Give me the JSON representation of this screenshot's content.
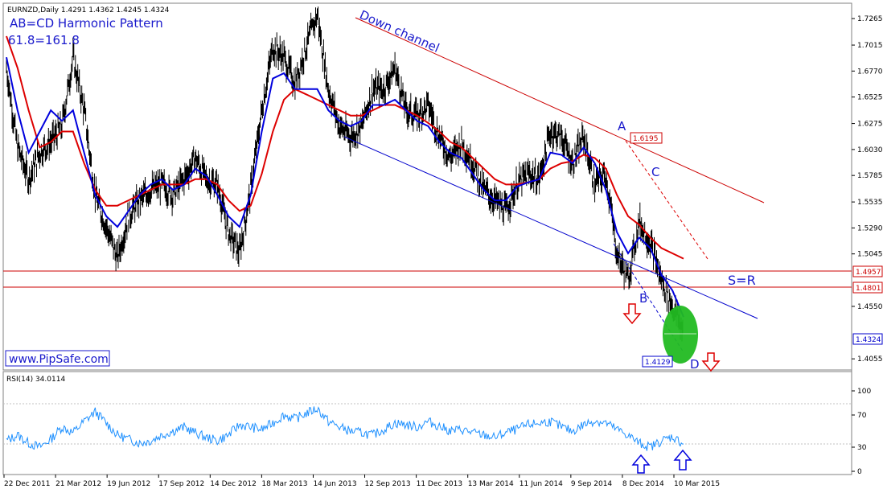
{
  "header": {
    "symbol_ohlc": "EURNZD,Daily  1.4291 1.4362 1.4245 1.4324",
    "pattern_title": "AB=CD Harmonic Pattern",
    "ratio_text": "61.8=161.8"
  },
  "annotations": {
    "channel_label": "Down channel",
    "sr_label": "S=R",
    "watermark": "www.PipSafe.com",
    "point_a": "A",
    "point_b": "B",
    "point_c": "C",
    "point_d": "D",
    "box_a_value": "1.6195",
    "box_d_value": "1.4129",
    "level_upper_value": "1.4957",
    "level_lower_value": "1.4801",
    "current_price": "1.4324"
  },
  "rsi_panel": {
    "label": "RSI(14) 34.0114",
    "ticks": [
      "100",
      "70",
      "30",
      "0"
    ]
  },
  "colors": {
    "price_bars": "#000000",
    "ma_fast": "#0000dd",
    "ma_slow": "#dd0000",
    "channel_upper": "#cc0000",
    "channel_lower": "#0000cc",
    "sr_lines": "#cc0000",
    "rsi_line": "#1e90ff",
    "target_zone": "#22bb22",
    "arrow_down": "#dd0000",
    "arrow_up": "#0000dd"
  },
  "chart_data": [
    {
      "type": "line",
      "subtype": "price-bars-with-moving-averages",
      "title": "EURNZD,Daily",
      "y_ticks": [
        "1.7265",
        "1.7015",
        "1.6770",
        "1.6525",
        "1.6275",
        "1.6030",
        "1.5785",
        "1.5535",
        "1.5290",
        "1.5045",
        "1.4550",
        "1.4055"
      ],
      "ylim": [
        1.395,
        1.741
      ],
      "x_labels": [
        "22 Dec 2011",
        "21 Mar 2012",
        "19 Jun 2012",
        "17 Sep 2012",
        "14 Dec 2012",
        "18 Mar 2013",
        "14 Jun 2013",
        "12 Sep 2013",
        "11 Dec 2013",
        "13 Mar 2014",
        "11 Jun 2014",
        "9 Sep 2014",
        "8 Dec 2014",
        "10 Mar 2015"
      ],
      "series": [
        {
          "name": "Price",
          "values": [
            1.68,
            1.605,
            1.575,
            1.6,
            1.61,
            1.625,
            1.69,
            1.64,
            1.56,
            1.53,
            1.5,
            1.54,
            1.555,
            1.565,
            1.57,
            1.56,
            1.575,
            1.595,
            1.575,
            1.57,
            1.525,
            1.505,
            1.565,
            1.64,
            1.7,
            1.69,
            1.665,
            1.7,
            1.73,
            1.66,
            1.625,
            1.615,
            1.625,
            1.66,
            1.66,
            1.68,
            1.64,
            1.635,
            1.645,
            1.615,
            1.595,
            1.61,
            1.59,
            1.565,
            1.555,
            1.545,
            1.57,
            1.58,
            1.575,
            1.62,
            1.615,
            1.59,
            1.615,
            1.57,
            1.58,
            1.505,
            1.48,
            1.535,
            1.515,
            1.48,
            1.455,
            1.4324
          ]
        },
        {
          "name": "MA fast",
          "values": [
            1.69,
            1.64,
            1.6,
            1.62,
            1.64,
            1.63,
            1.64,
            1.6,
            1.56,
            1.54,
            1.53,
            1.545,
            1.56,
            1.57,
            1.575,
            1.565,
            1.57,
            1.585,
            1.578,
            1.56,
            1.54,
            1.53,
            1.56,
            1.62,
            1.67,
            1.675,
            1.66,
            1.66,
            1.66,
            1.64,
            1.63,
            1.625,
            1.63,
            1.645,
            1.645,
            1.65,
            1.64,
            1.63,
            1.625,
            1.61,
            1.6,
            1.595,
            1.58,
            1.565,
            1.555,
            1.555,
            1.568,
            1.572,
            1.575,
            1.6,
            1.598,
            1.59,
            1.605,
            1.59,
            1.565,
            1.525,
            1.505,
            1.52,
            1.51,
            1.485,
            1.47,
            1.445
          ]
        },
        {
          "name": "MA slow",
          "values": [
            1.71,
            1.68,
            1.64,
            1.605,
            1.61,
            1.62,
            1.62,
            1.59,
            1.565,
            1.55,
            1.55,
            1.555,
            1.56,
            1.565,
            1.57,
            1.57,
            1.57,
            1.575,
            1.575,
            1.57,
            1.555,
            1.545,
            1.55,
            1.58,
            1.62,
            1.65,
            1.66,
            1.655,
            1.65,
            1.645,
            1.64,
            1.635,
            1.635,
            1.64,
            1.645,
            1.645,
            1.64,
            1.635,
            1.628,
            1.62,
            1.61,
            1.605,
            1.595,
            1.585,
            1.575,
            1.57,
            1.57,
            1.572,
            1.575,
            1.585,
            1.59,
            1.592,
            1.598,
            1.595,
            1.585,
            1.56,
            1.54,
            1.532,
            1.52,
            1.51,
            1.505,
            1.5
          ]
        }
      ],
      "levels": [
        1.4957,
        1.4801
      ]
    },
    {
      "type": "line",
      "title": "RSI(14) 34.0114",
      "y_ticks": [
        "100",
        "70",
        "30",
        "0"
      ],
      "ylim": [
        0,
        100
      ],
      "series": [
        {
          "name": "RSI(14)",
          "values": [
            38,
            45,
            35,
            30,
            40,
            55,
            48,
            62,
            74,
            60,
            45,
            40,
            35,
            38,
            45,
            50,
            55,
            48,
            42,
            38,
            45,
            58,
            55,
            52,
            60,
            70,
            65,
            72,
            78,
            62,
            55,
            50,
            48,
            45,
            52,
            60,
            58,
            55,
            62,
            56,
            50,
            52,
            48,
            45,
            42,
            48,
            52,
            58,
            60,
            62,
            55,
            50,
            58,
            63,
            60,
            52,
            45,
            35,
            30,
            38,
            43,
            34
          ]
        }
      ]
    }
  ]
}
